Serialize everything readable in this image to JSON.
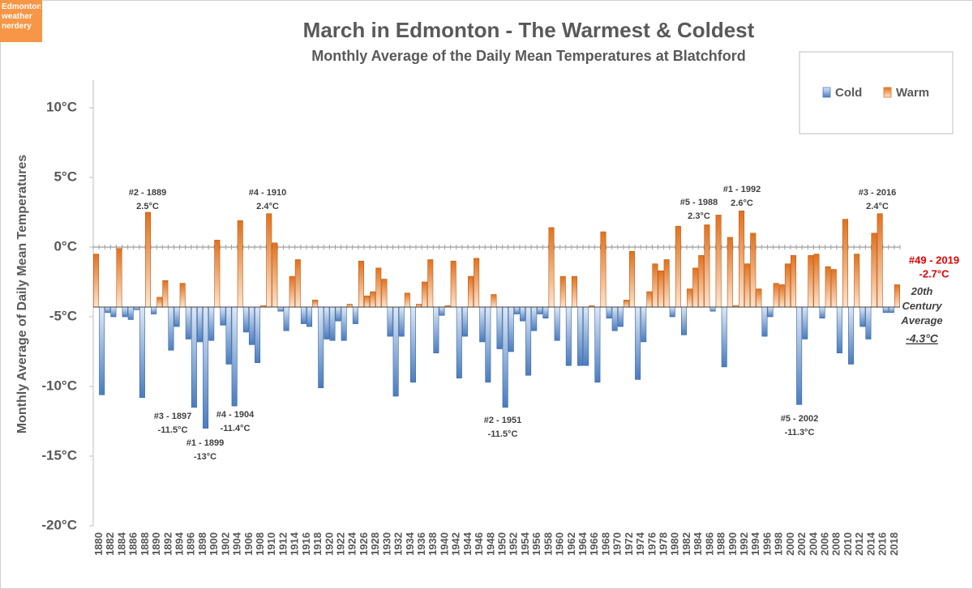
{
  "chart_data": {
    "type": "bar",
    "badge": "Edmonton weather nerdery",
    "title": "March in Edmonton - The Warmest & Coldest",
    "subtitle": "Monthly Average of the Daily Mean Temperatures at Blatchford",
    "y_label": "Monthly Average of Daily Mean Temperatures",
    "legend": [
      {
        "name": "Cold",
        "color": "#4a7cc0"
      },
      {
        "name": "Warm",
        "color": "#e2711d"
      }
    ],
    "baseline": -4.3,
    "baseline_label": "20th Century Average",
    "baseline_value_label": "-4.3°C",
    "ylim": [
      -20,
      12
    ],
    "yticks": [
      {
        "value": -20,
        "label": "-20°C"
      },
      {
        "value": -15,
        "label": "-15°C"
      },
      {
        "value": -10,
        "label": "-10°C"
      },
      {
        "value": -5,
        "label": "-5°C"
      },
      {
        "value": 0,
        "label": "0°C"
      },
      {
        "value": 5,
        "label": "5°C"
      },
      {
        "value": 10,
        "label": "10°C"
      }
    ],
    "categories": [
      "1880",
      null,
      "1882",
      null,
      "1884",
      null,
      "1886",
      null,
      "1888",
      null,
      "1890",
      null,
      "1892",
      null,
      "1894",
      null,
      "1896",
      null,
      "1898",
      null,
      "1900",
      null,
      "1902",
      null,
      "1904",
      null,
      "1906",
      null,
      "1908",
      null,
      "1910",
      null,
      "1912",
      null,
      "1914",
      null,
      "1916",
      null,
      "1918",
      null,
      "1920",
      null,
      "1922",
      null,
      "1924",
      null,
      "1926",
      null,
      "1928",
      null,
      "1930",
      null,
      "1932",
      null,
      "1934",
      null,
      "1936",
      null,
      "1938",
      null,
      "1940",
      null,
      "1942",
      null,
      "1944",
      null,
      "1946",
      null,
      "1948",
      null,
      "1950",
      null,
      "1952",
      null,
      "1954",
      null,
      "1956",
      null,
      "1958",
      null,
      "1960",
      null,
      "1962",
      null,
      "1964",
      null,
      "1966",
      null,
      "1968",
      null,
      "1970",
      null,
      "1972",
      null,
      "1974",
      null,
      "1976",
      null,
      "1978",
      null,
      "1980",
      null,
      "1982",
      null,
      "1984",
      null,
      "1986",
      null,
      "1988",
      null,
      "1990",
      null,
      "1992",
      null,
      "1994",
      null,
      "1996",
      null,
      "1998",
      null,
      "2000",
      null,
      "2002",
      null,
      "2004",
      null,
      "2006",
      null,
      "2008",
      null,
      "2010",
      null,
      "2012",
      null,
      "2014",
      null,
      "2016",
      null,
      "2018",
      null
    ],
    "values": [
      -0.5,
      -10.6,
      -4.7,
      -5.0,
      -0.1,
      -5.0,
      -5.2,
      -4.5,
      -10.8,
      2.5,
      -4.8,
      -3.6,
      -2.4,
      -7.4,
      -5.7,
      -2.6,
      -6.6,
      -11.5,
      -6.8,
      -13,
      -6.7,
      0.5,
      -5.6,
      -8.4,
      -11.4,
      1.9,
      -6.1,
      -7.0,
      -8.3,
      -4.2,
      2.4,
      0.3,
      -4.6,
      -6.0,
      -2.1,
      -0.9,
      -5.5,
      -5.7,
      -3.8,
      -10.1,
      -6.6,
      -6.7,
      -5.3,
      -6.7,
      -4.1,
      -5.5,
      -1.0,
      -3.5,
      -3.2,
      -1.5,
      -2.3,
      -6.4,
      -10.7,
      -6.4,
      -3.3,
      -9.7,
      -4.1,
      -2.5,
      -0.9,
      -7.6,
      -4.9,
      -4.2,
      -1.0,
      -9.4,
      -6.4,
      -2.1,
      -0.8,
      -6.8,
      -9.7,
      -3.4,
      -7.3,
      -11.5,
      -7.5,
      -4.8,
      -5.3,
      -9.2,
      -6.0,
      -4.8,
      -5.1,
      1.4,
      -6.7,
      -2.1,
      -8.5,
      -2.1,
      -8.5,
      -8.5,
      -4.2,
      -9.7,
      1.1,
      -5.1,
      -6.0,
      -5.7,
      -3.8,
      -0.3,
      -9.5,
      -6.8,
      -3.2,
      -1.2,
      -1.7,
      -0.9,
      -5.0,
      1.5,
      -6.3,
      -3.0,
      -1.5,
      -0.6,
      1.6,
      -4.6,
      2.3,
      -8.6,
      0.7,
      -4.2,
      2.6,
      -1.2,
      1.0,
      -3.0,
      -6.4,
      -5.0,
      -2.6,
      -2.7,
      -1.2,
      -0.6,
      -11.3,
      -6.6,
      -0.6,
      -0.5,
      -5.1,
      -1.4,
      -1.6,
      -7.6,
      2.0,
      -8.4,
      -0.5,
      -5.7,
      -6.6,
      1.0,
      2.4,
      -4.7,
      -4.7,
      -2.7
    ],
    "annotations": [
      {
        "label": "#2 - 1889",
        "value_label": "2.5°C"
      },
      {
        "label": "#4 - 1910",
        "value_label": "2.4°C"
      },
      {
        "label": "#5 - 1988",
        "value_label": "2.3°C"
      },
      {
        "label": "#1 - 1992",
        "value_label": "2.6°C"
      },
      {
        "label": "#3 - 2016",
        "value_label": "2.4°C"
      },
      {
        "label": "#3 - 1897",
        "value_label": "-11.5°C"
      },
      {
        "label": "#1 - 1899",
        "value_label": "-13°C"
      },
      {
        "label": "#4 - 1904",
        "value_label": "-11.4°C"
      },
      {
        "label": "#2 - 1951",
        "value_label": "-11.5°C"
      },
      {
        "label": "#5 - 2002",
        "value_label": "-11.3°C"
      },
      {
        "label": "#49 - 2019",
        "value_label": "-2.7°C",
        "color": "#e00000"
      }
    ]
  }
}
